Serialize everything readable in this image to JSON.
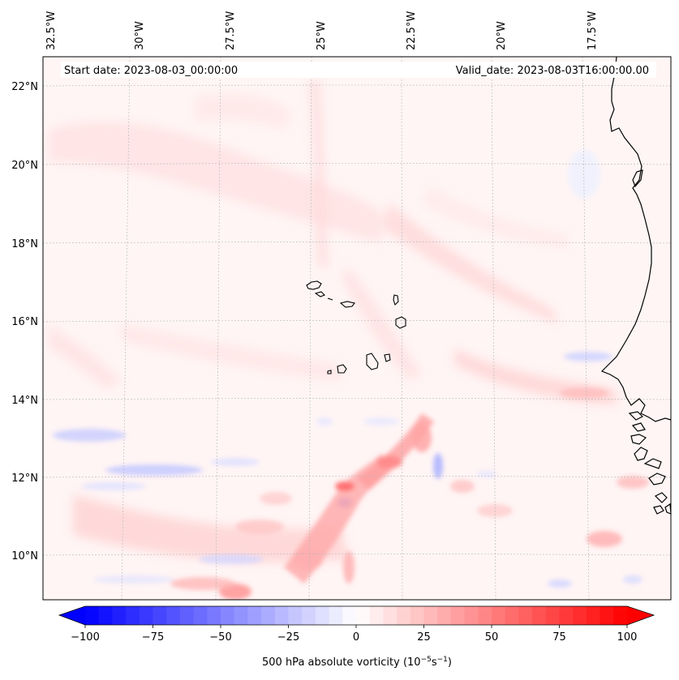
{
  "map": {
    "start_date": "Start date: 2023-08-03_00:00:00",
    "valid_date": "Valid_date: 2023-08-03T16:00:00.00",
    "longitude_labels": [
      "32.5°W",
      "30°W",
      "27.5°W",
      "25°W",
      "22.5°W",
      "20°W",
      "17.5°W"
    ],
    "latitude_labels": [
      "22°N",
      "20°N",
      "18°N",
      "16°N",
      "14°N",
      "12°N",
      "10°N"
    ],
    "features": [
      "cape-verde-islands",
      "west-africa-coastline",
      "vorticity-field"
    ]
  },
  "colorbar": {
    "tick_labels": [
      "−100",
      "−75",
      "−50",
      "−25",
      "0",
      "25",
      "50",
      "75",
      "100"
    ],
    "label_prefix": "500 hPa absolute vorticity (10",
    "label_exp1": "−5",
    "label_mid": "s",
    "label_exp2": "−1",
    "label_suffix": ")",
    "min": -100,
    "max": 100,
    "levels": 40,
    "colormap": "bwr",
    "neg_color": "#0000ff",
    "zero_color": "#ffffff",
    "pos_color": "#ff0000"
  }
}
